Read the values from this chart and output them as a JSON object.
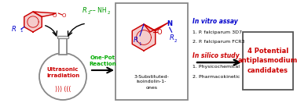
{
  "bg_color": "#ffffff",
  "ultrasonic_text": "Ultrasonic\nIrradiation",
  "ultrasonic_color": "#cc0000",
  "waves_text": "))) (((",
  "waves_color": "#cc0000",
  "onepot_text": "One-Pot\nReaction",
  "onepot_color": "#00aa00",
  "product_name": "3-Substituted-\nisoindolin-1-\nones",
  "product_name_color": "#000000",
  "vitro_title": "In vitro assay",
  "vitro_color": "#0000cc",
  "vitro_items": [
    "1. P. falciparum 3D7",
    "2. P. falciparum FCR3"
  ],
  "silico_title": "In silico study",
  "silico_color": "#cc0000",
  "silico_items": [
    "1. Physicochemical",
    "2. Pharmacokinetic"
  ],
  "result_text": "4 Potential\nantiplasmodium\ncandidates",
  "result_color": "#cc0000",
  "red": "#cc0000",
  "blue": "#0000cc",
  "green": "#009900",
  "black": "#000000",
  "gray": "#888888"
}
